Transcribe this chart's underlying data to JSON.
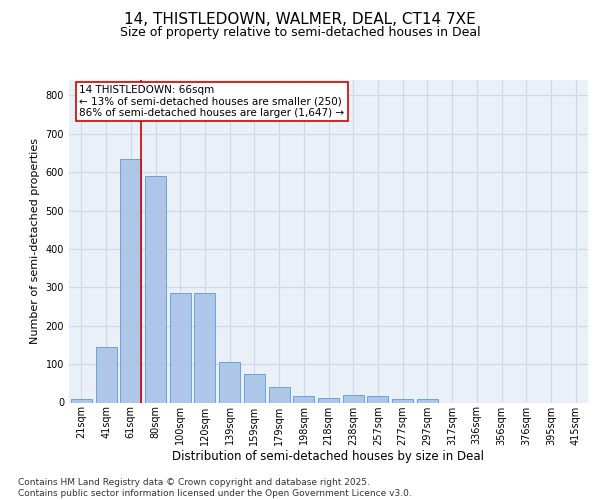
{
  "title": "14, THISTLEDOWN, WALMER, DEAL, CT14 7XE",
  "subtitle": "Size of property relative to semi-detached houses in Deal",
  "xlabel": "Distribution of semi-detached houses by size in Deal",
  "ylabel": "Number of semi-detached properties",
  "categories": [
    "21sqm",
    "41sqm",
    "61sqm",
    "80sqm",
    "100sqm",
    "120sqm",
    "139sqm",
    "159sqm",
    "179sqm",
    "198sqm",
    "218sqm",
    "238sqm",
    "257sqm",
    "277sqm",
    "297sqm",
    "317sqm",
    "336sqm",
    "356sqm",
    "376sqm",
    "395sqm",
    "415sqm"
  ],
  "values": [
    10,
    145,
    635,
    590,
    285,
    285,
    105,
    75,
    40,
    18,
    12,
    20,
    18,
    8,
    10,
    0,
    0,
    0,
    0,
    0,
    0
  ],
  "bar_color": "#aec6e8",
  "bar_edge_color": "#5b9bd5",
  "annotation_text": "14 THISTLEDOWN: 66sqm\n← 13% of semi-detached houses are smaller (250)\n86% of semi-detached houses are larger (1,647) →",
  "annotation_box_color": "#ffffff",
  "annotation_box_edge_color": "#cc0000",
  "vline_color": "#cc0000",
  "vline_x": 2.42,
  "ylim": [
    0,
    840
  ],
  "yticks": [
    0,
    100,
    200,
    300,
    400,
    500,
    600,
    700,
    800
  ],
  "grid_color": "#d0d8e8",
  "background_color": "#eaf0f8",
  "footer_text": "Contains HM Land Registry data © Crown copyright and database right 2025.\nContains public sector information licensed under the Open Government Licence v3.0.",
  "title_fontsize": 11,
  "subtitle_fontsize": 9,
  "xlabel_fontsize": 8.5,
  "ylabel_fontsize": 8,
  "tick_fontsize": 7,
  "annotation_fontsize": 7.5,
  "footer_fontsize": 6.5
}
